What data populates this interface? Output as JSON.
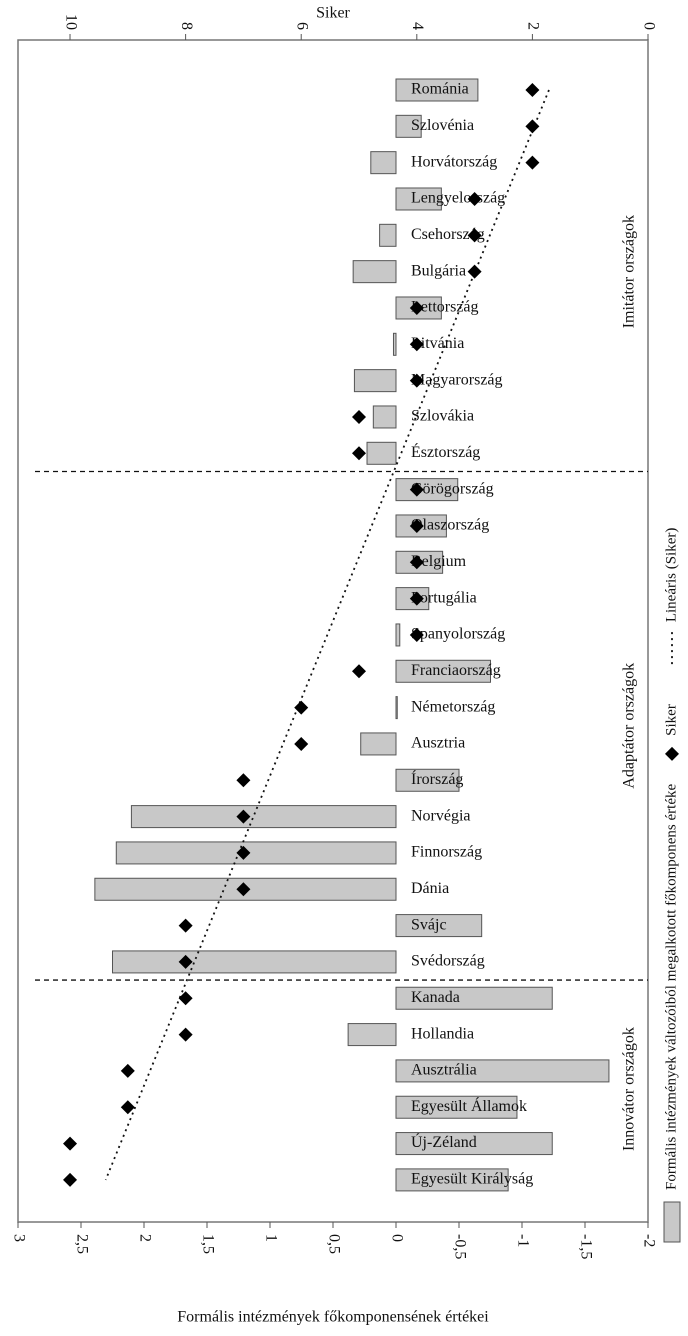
{
  "chart_data": {
    "type": "bar",
    "x2label": "Siker",
    "xlabel": "Formális intézmények főkomponensének értékei",
    "groups": [
      {
        "label": "Imitátor országok",
        "categories": [
          "Románia",
          "Szlovénia",
          "Horvátország",
          "Lengyelország",
          "Csehország",
          "Bulgária",
          "Lettország",
          "Litvánia",
          "Magyarország",
          "Szlovákia",
          "Észtország"
        ]
      },
      {
        "label": "Adaptátor országok",
        "categories": [
          "Görögország",
          "Olaszország",
          "Belgium",
          "Portugália",
          "Spanyolország",
          "Franciaország",
          "Németország",
          "Ausztria",
          "Írország",
          "Norvégia",
          "Finnország",
          "Dánia",
          "Svájc",
          "Svédország"
        ]
      },
      {
        "label": "Innovátor országok",
        "categories": [
          "Kanada",
          "Hollandia",
          "Ausztrália",
          "Egyesült Államok",
          "Új-Zéland",
          "Egyesült Királyság"
        ]
      }
    ],
    "series": [
      {
        "name": "Formális intézmények változóiból megalkotott főkomponens értéke",
        "color": "#c8c8c8",
        "values": [
          -0.65,
          -0.2,
          0.2,
          -0.36,
          0.13,
          0.34,
          -0.36,
          0.02,
          0.33,
          0.18,
          0.23,
          -0.49,
          -0.4,
          -0.37,
          -0.26,
          -0.03,
          -0.75,
          -0.01,
          0.28,
          -0.5,
          2.1,
          2.22,
          2.39,
          -0.68,
          2.25,
          -1.24,
          0.38,
          -1.69,
          -0.96,
          -1.24,
          -0.89
        ]
      },
      {
        "name": "Siker",
        "color": "#000000",
        "axis": "x2",
        "values": [
          2,
          2,
          2,
          3,
          3,
          3,
          4,
          4,
          4,
          5,
          5,
          4,
          4,
          4,
          4,
          4,
          5,
          6,
          6,
          7,
          7,
          7,
          7,
          8,
          8,
          8,
          8,
          9,
          9,
          10,
          10
        ]
      }
    ],
    "trendline": {
      "name": "Lineáris (Siker)",
      "series": "Siker"
    },
    "xlim": [
      3,
      -2
    ],
    "xticks": [
      3,
      {
        "value": 2.5,
        "label": "2,5"
      },
      2,
      {
        "value": 1.5,
        "label": "1,5"
      },
      1,
      {
        "value": 0.5,
        "label": "0,5"
      },
      0,
      {
        "value": -0.5,
        "label": "-0,5"
      },
      -1,
      {
        "value": -1.5,
        "label": "-1,5"
      },
      -2
    ],
    "x2lim": [
      10.9,
      0
    ],
    "x2ticks": [
      10,
      8,
      6,
      4,
      2,
      0
    ],
    "legend": "right"
  }
}
